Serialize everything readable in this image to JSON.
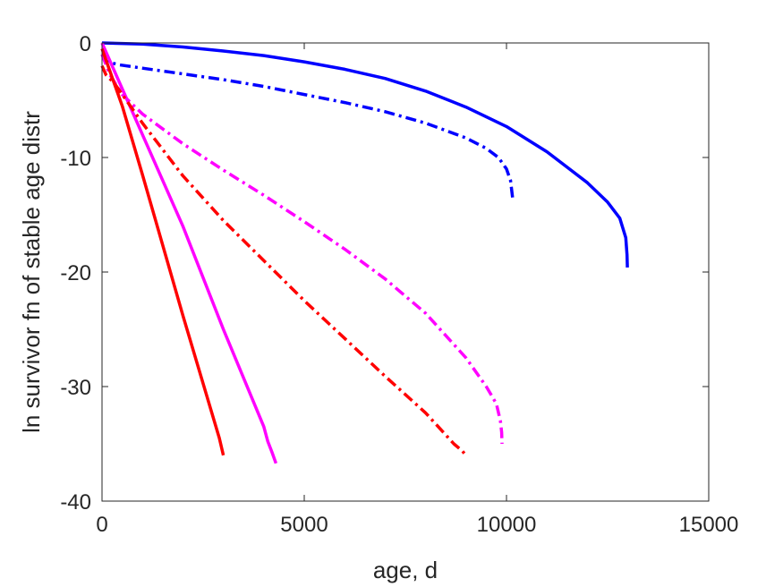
{
  "chart_data": {
    "type": "line",
    "xlabel": "age, d",
    "ylabel": "ln survivor fn of stable age distr",
    "xlim": [
      0,
      15000
    ],
    "ylim": [
      -40,
      0
    ],
    "xticks": [
      0,
      5000,
      10000,
      15000
    ],
    "yticks": [
      0,
      -10,
      -20,
      -30,
      -40
    ],
    "xtick_labels": [
      "0",
      "5000",
      "10000",
      "15000"
    ],
    "ytick_labels": [
      "0",
      "-10",
      "-20",
      "-30",
      "-40"
    ],
    "grid": false,
    "legend": "none",
    "series": [
      {
        "color": "#0000ff",
        "style": "solid",
        "points": [
          [
            0,
            0
          ],
          [
            1000,
            -0.1
          ],
          [
            2000,
            -0.35
          ],
          [
            3000,
            -0.7
          ],
          [
            4000,
            -1.1
          ],
          [
            5000,
            -1.65
          ],
          [
            6000,
            -2.3
          ],
          [
            7000,
            -3.1
          ],
          [
            8000,
            -4.2
          ],
          [
            9000,
            -5.6
          ],
          [
            10000,
            -7.3
          ],
          [
            11000,
            -9.5
          ],
          [
            12000,
            -12.2
          ],
          [
            12500,
            -13.9
          ],
          [
            12800,
            -15.3
          ],
          [
            12950,
            -17.0
          ],
          [
            12980,
            -18.5
          ],
          [
            12990,
            -19.6
          ]
        ]
      },
      {
        "color": "#0000ff",
        "style": "dashdot",
        "points": [
          [
            0,
            -1.0
          ],
          [
            100,
            -1.6
          ],
          [
            400,
            -1.9
          ],
          [
            1000,
            -2.2
          ],
          [
            2000,
            -2.7
          ],
          [
            3000,
            -3.2
          ],
          [
            4000,
            -3.8
          ],
          [
            5000,
            -4.5
          ],
          [
            6000,
            -5.2
          ],
          [
            7000,
            -6.0
          ],
          [
            8000,
            -7.0
          ],
          [
            9000,
            -8.3
          ],
          [
            9500,
            -9.2
          ],
          [
            9800,
            -10.0
          ],
          [
            10000,
            -11.0
          ],
          [
            10100,
            -12.0
          ],
          [
            10150,
            -13.5
          ]
        ]
      },
      {
        "color": "#ff00ff",
        "style": "solid",
        "points": [
          [
            0,
            0
          ],
          [
            500,
            -4
          ],
          [
            1000,
            -8
          ],
          [
            2000,
            -16
          ],
          [
            3000,
            -25
          ],
          [
            4000,
            -33.5
          ],
          [
            4100,
            -34.8
          ],
          [
            4200,
            -35.7
          ],
          [
            4300,
            -36.7
          ]
        ]
      },
      {
        "color": "#ff00ff",
        "style": "dashdot",
        "points": [
          [
            0,
            -1.0
          ],
          [
            200,
            -2.8
          ],
          [
            500,
            -4.5
          ],
          [
            1000,
            -6.2
          ],
          [
            2000,
            -8.8
          ],
          [
            3000,
            -11.1
          ],
          [
            4000,
            -13.3
          ],
          [
            5000,
            -15.6
          ],
          [
            6000,
            -18.0
          ],
          [
            7000,
            -20.6
          ],
          [
            8000,
            -23.6
          ],
          [
            9000,
            -27.5
          ],
          [
            9500,
            -30.0
          ],
          [
            9750,
            -31.5
          ],
          [
            9850,
            -33.0
          ],
          [
            9880,
            -34.0
          ],
          [
            9890,
            -35.0
          ]
        ]
      },
      {
        "color": "#ff0000",
        "style": "solid",
        "points": [
          [
            0,
            -0.5
          ],
          [
            100,
            -1.5
          ],
          [
            500,
            -5.5
          ],
          [
            1000,
            -11.5
          ],
          [
            2000,
            -23.8
          ],
          [
            2900,
            -34.5
          ],
          [
            3000,
            -36.0
          ]
        ]
      },
      {
        "color": "#ff0000",
        "style": "dashdot",
        "points": [
          [
            0,
            -2.0
          ],
          [
            100,
            -2.8
          ],
          [
            300,
            -3.5
          ],
          [
            1000,
            -7.0
          ],
          [
            2000,
            -11.6
          ],
          [
            3000,
            -15.5
          ],
          [
            4000,
            -19.0
          ],
          [
            5000,
            -22.5
          ],
          [
            6000,
            -25.8
          ],
          [
            7000,
            -29.1
          ],
          [
            8000,
            -32.3
          ],
          [
            8700,
            -35.0
          ],
          [
            8900,
            -35.6
          ],
          [
            9000,
            -36.0
          ]
        ]
      }
    ]
  }
}
